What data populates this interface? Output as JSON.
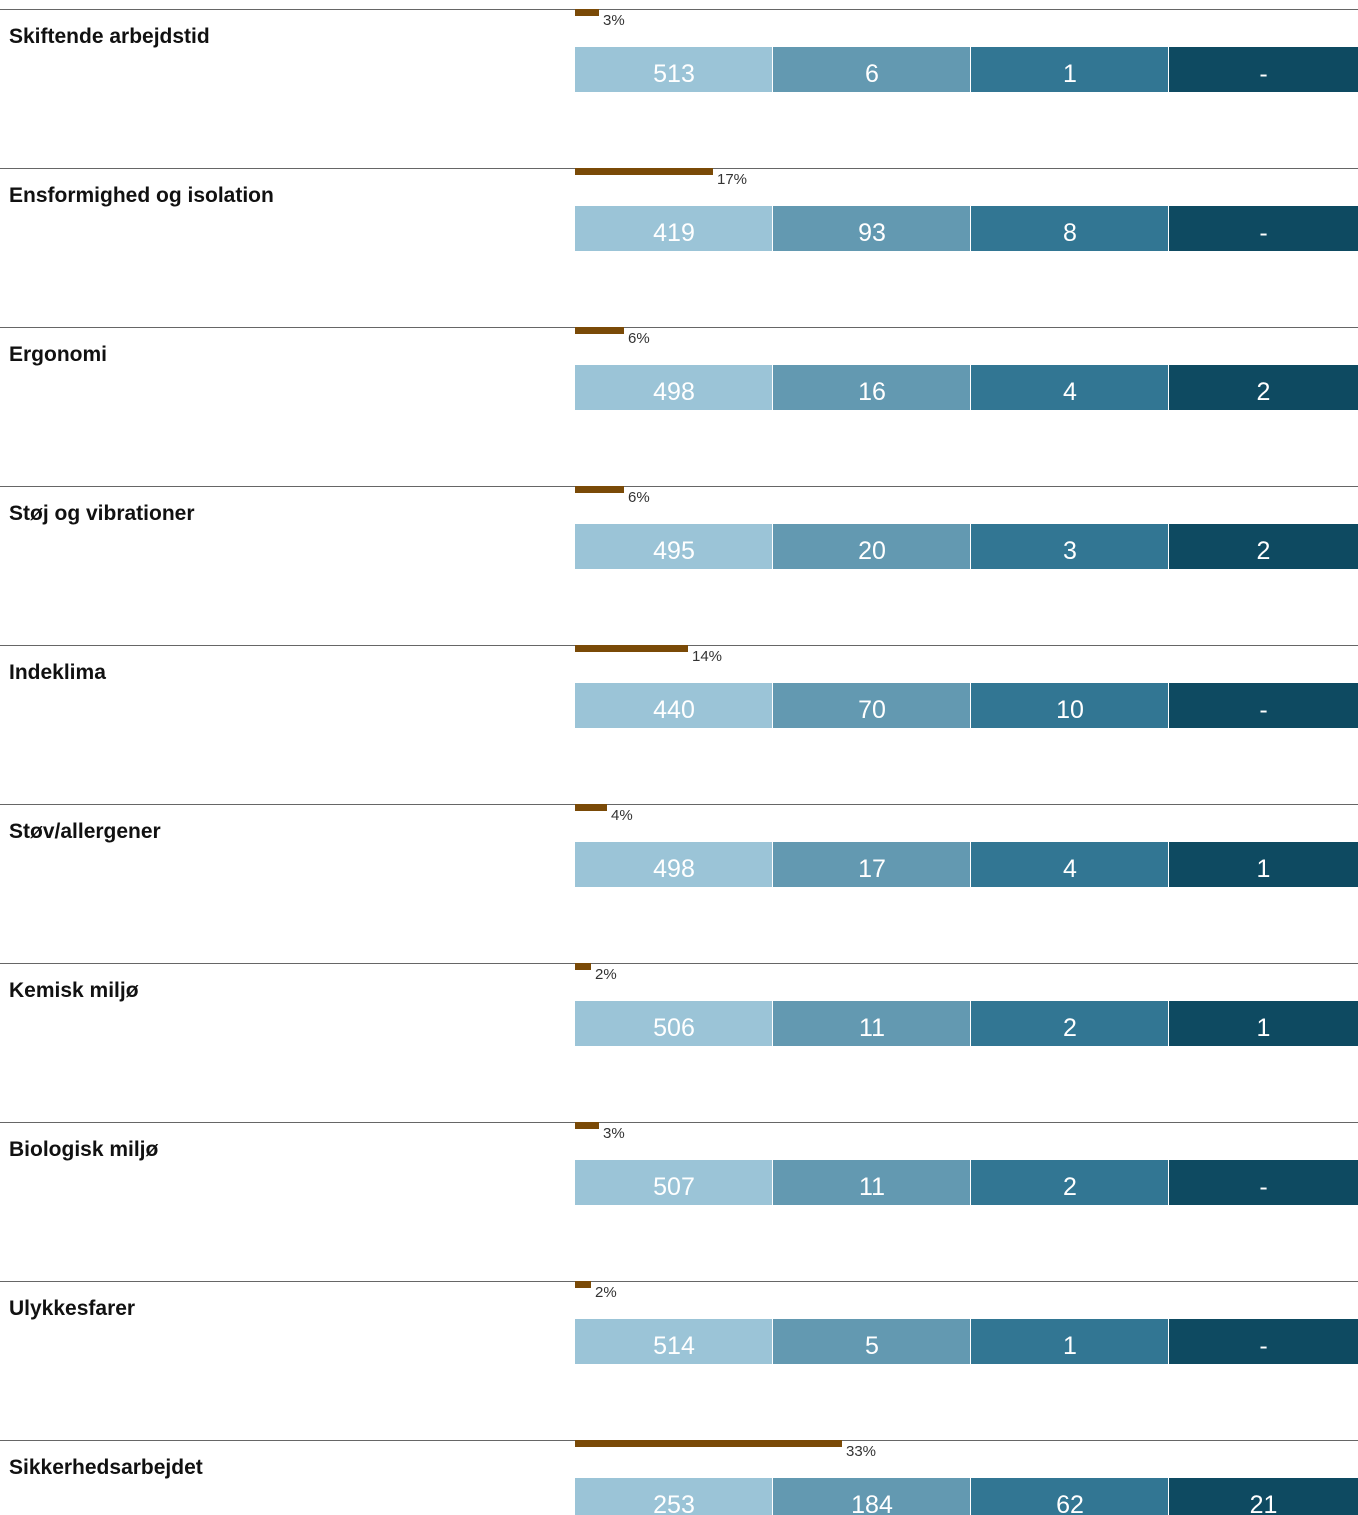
{
  "colors": {
    "divider": "#666666",
    "percent_bar": "#7a4a07",
    "segments": [
      "#9bc4d7",
      "#6399b1",
      "#327693",
      "#0e4a61"
    ],
    "segment_text": "#ffffff"
  },
  "chart_data": {
    "type": "bar",
    "layout": "stacked-horizontal",
    "categories": [
      "Skiftende arbejdstid",
      "Ensformighed og isolation",
      "Ergonomi",
      "Støj og vibrationer",
      "Indeklima",
      "Støv/allergener",
      "Kemisk miljø",
      "Biologisk miljø",
      "Ulykkesfarer",
      "Sikkerhedsarbejdet"
    ],
    "percent_share": [
      3,
      17,
      6,
      6,
      14,
      4,
      2,
      3,
      2,
      33
    ],
    "percent_labels": [
      "3%",
      "17%",
      "6%",
      "6%",
      "14%",
      "4%",
      "2%",
      "3%",
      "2%",
      "33%"
    ],
    "series": [
      {
        "values": [
          513,
          419,
          498,
          495,
          440,
          498,
          506,
          507,
          514,
          253
        ]
      },
      {
        "values": [
          6,
          93,
          16,
          20,
          70,
          17,
          11,
          11,
          5,
          184
        ]
      },
      {
        "values": [
          1,
          8,
          4,
          3,
          10,
          4,
          2,
          2,
          1,
          62
        ]
      },
      {
        "values": [
          null,
          null,
          2,
          2,
          null,
          1,
          1,
          null,
          null,
          21
        ]
      }
    ],
    "segment_labels": [
      [
        "513",
        "6",
        "1",
        "-"
      ],
      [
        "419",
        "93",
        "8",
        "-"
      ],
      [
        "498",
        "16",
        "4",
        "2"
      ],
      [
        "495",
        "20",
        "3",
        "2"
      ],
      [
        "440",
        "70",
        "10",
        "-"
      ],
      [
        "498",
        "17",
        "4",
        "1"
      ],
      [
        "506",
        "11",
        "2",
        "1"
      ],
      [
        "507",
        "11",
        "2",
        "-"
      ],
      [
        "514",
        "5",
        "1",
        "-"
      ],
      [
        "253",
        "184",
        "62",
        "21"
      ]
    ],
    "grid": false,
    "legend": "none"
  }
}
